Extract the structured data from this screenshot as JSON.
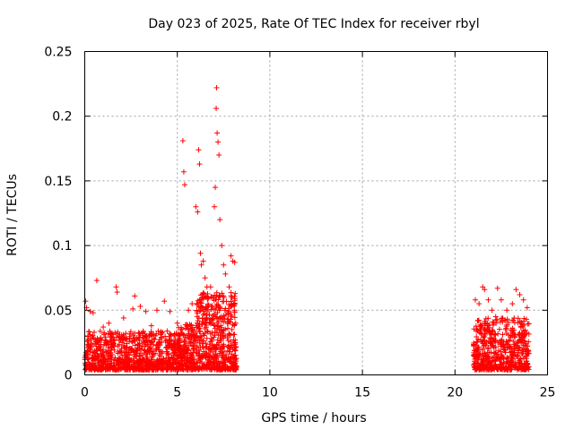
{
  "chart_data": {
    "type": "scatter",
    "title": "Day 023 of 2025, Rate Of TEC Index for receiver rbyl",
    "xlabel": "GPS time / hours",
    "ylabel": "ROTI / TECUs",
    "xlim": [
      0,
      25
    ],
    "ylim": [
      0,
      0.25
    ],
    "xticks": [
      0,
      5,
      10,
      15,
      20,
      25
    ],
    "xtick_labels": [
      "0",
      "5",
      "10",
      "15",
      "20",
      "25"
    ],
    "yticks": [
      0,
      0.05,
      0.1,
      0.15,
      0.2,
      0.25
    ],
    "ytick_labels": [
      "0",
      "0.05",
      "0.1",
      "0.15",
      "0.2",
      "0.25"
    ],
    "grid": true,
    "marker": "+",
    "marker_color": "#ff0000",
    "series": [
      {
        "name": "ROTI",
        "points": [
          [
            0.05,
            0.057
          ],
          [
            0.1,
            0.052
          ],
          [
            0.3,
            0.049
          ],
          [
            0.45,
            0.048
          ],
          [
            0.65,
            0.073
          ],
          [
            1.0,
            0.037
          ],
          [
            1.3,
            0.04
          ],
          [
            1.7,
            0.068
          ],
          [
            1.75,
            0.064
          ],
          [
            2.1,
            0.044
          ],
          [
            2.6,
            0.051
          ],
          [
            2.7,
            0.061
          ],
          [
            3.0,
            0.053
          ],
          [
            3.3,
            0.049
          ],
          [
            3.6,
            0.038
          ],
          [
            3.9,
            0.05
          ],
          [
            4.3,
            0.057
          ],
          [
            4.6,
            0.049
          ],
          [
            5.0,
            0.04
          ],
          [
            5.3,
            0.181
          ],
          [
            5.35,
            0.157
          ],
          [
            5.4,
            0.147
          ],
          [
            5.6,
            0.05
          ],
          [
            5.8,
            0.055
          ],
          [
            6.0,
            0.13
          ],
          [
            6.1,
            0.126
          ],
          [
            6.15,
            0.174
          ],
          [
            6.2,
            0.163
          ],
          [
            6.25,
            0.094
          ],
          [
            6.3,
            0.085
          ],
          [
            6.4,
            0.088
          ],
          [
            6.5,
            0.075
          ],
          [
            6.6,
            0.068
          ],
          [
            6.8,
            0.068
          ],
          [
            7.0,
            0.13
          ],
          [
            7.05,
            0.145
          ],
          [
            7.1,
            0.206
          ],
          [
            7.12,
            0.222
          ],
          [
            7.15,
            0.187
          ],
          [
            7.2,
            0.18
          ],
          [
            7.25,
            0.17
          ],
          [
            7.3,
            0.12
          ],
          [
            7.4,
            0.1
          ],
          [
            7.5,
            0.085
          ],
          [
            7.6,
            0.078
          ],
          [
            7.8,
            0.068
          ],
          [
            7.9,
            0.092
          ],
          [
            8.0,
            0.088
          ],
          [
            8.1,
            0.087
          ],
          [
            21.1,
            0.058
          ],
          [
            21.3,
            0.055
          ],
          [
            21.5,
            0.068
          ],
          [
            21.6,
            0.066
          ],
          [
            21.8,
            0.058
          ],
          [
            22.0,
            0.05
          ],
          [
            22.2,
            0.045
          ],
          [
            22.3,
            0.067
          ],
          [
            22.5,
            0.058
          ],
          [
            22.8,
            0.05
          ],
          [
            23.1,
            0.055
          ],
          [
            23.3,
            0.066
          ],
          [
            23.5,
            0.062
          ],
          [
            23.7,
            0.058
          ],
          [
            23.9,
            0.052
          ]
        ]
      }
    ]
  }
}
